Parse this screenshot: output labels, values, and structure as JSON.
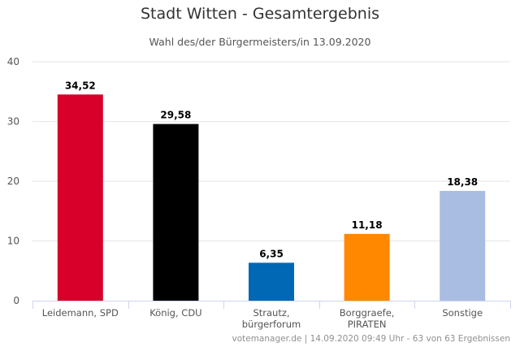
{
  "chart_data": {
    "type": "bar",
    "title": "Stadt Witten - Gesamtergebnis",
    "subtitle": "Wahl des/der Bürgermeisters/in 13.09.2020",
    "categories": [
      [
        "Leidemann, SPD"
      ],
      [
        "König, CDU"
      ],
      [
        "Strautz,",
        "bürgerforum"
      ],
      [
        "Borggraefe,",
        "PIRATEN"
      ],
      [
        "Sonstige"
      ]
    ],
    "values": [
      34.52,
      29.58,
      6.35,
      11.18,
      18.38
    ],
    "value_labels": [
      "34,52",
      "29,58",
      "6,35",
      "11,18",
      "18,38"
    ],
    "colors": [
      "#d8002a",
      "#000000",
      "#0068b4",
      "#ff8800",
      "#a9bde3"
    ],
    "ylim": [
      0,
      40
    ],
    "yticks": [
      0,
      10,
      20,
      30,
      40
    ],
    "xlabel": "",
    "ylabel": "",
    "grid": true
  },
  "credits": "votemanager.de | 14.09.2020 09:49 Uhr - 63 von 63 Ergebnissen"
}
